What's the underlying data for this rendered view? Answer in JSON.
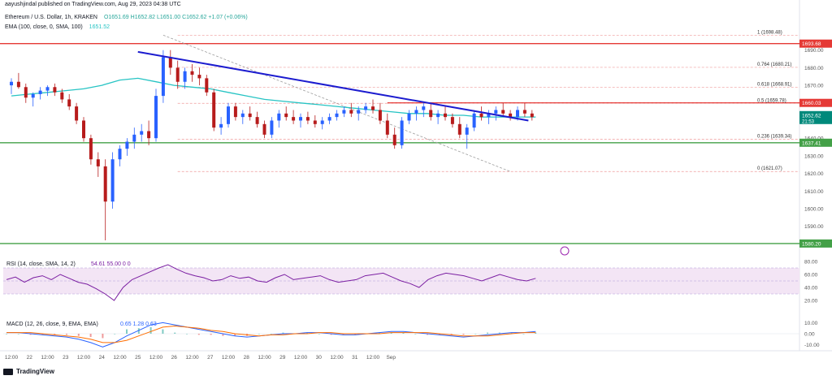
{
  "header": {
    "published": "aayushjindal published on TradingView.com, Aug 29, 2023 04:38 UTC",
    "symbol": "Ethereum / U.S. Dollar, 1h, KRAKEN",
    "ohlc": "O1651.69  H1652.82  L1651.00  C1652.62  +1.07 (+0.06%)",
    "ema_label": "EMA (100, close, 0, SMA, 100)",
    "ema_value": "1651.52"
  },
  "footer": {
    "brand": "TradingView"
  },
  "colors": {
    "up": "#26a69a",
    "down": "#ef5350",
    "candle_up": "#2962ff",
    "candle_down": "#b71c1c",
    "ema": "#27c4c4",
    "trend": "#1c1ccf",
    "resistance": "#e53935",
    "support": "#43a047",
    "rsi": "#7b1fa2",
    "macd": "#2962ff",
    "signal": "#ff6d00",
    "bg": "#ffffff"
  },
  "chart_data": [
    {
      "type": "candlestick",
      "title": "Ethereum / U.S. Dollar, 1h, KRAKEN",
      "x_ticks": [
        "12:00",
        "22",
        "12:00",
        "23",
        "12:00",
        "24",
        "12:00",
        "25",
        "12:00",
        "26",
        "12:00",
        "27",
        "12:00",
        "28",
        "12:00",
        "29",
        "12:00",
        "30",
        "12:00",
        "31",
        "12:00",
        "Sep"
      ],
      "y_ticks": [
        "1690.00",
        "1680.00",
        "1670.00",
        "1660.00",
        "1650.00",
        "1640.00",
        "1630.00",
        "1620.00",
        "1610.00",
        "1600.00",
        "1590.00"
      ],
      "ylim": [
        1582,
        1700
      ],
      "horizontal_lines": [
        {
          "label": "1693.68",
          "value": 1693.68,
          "role": "resistance"
        },
        {
          "label": "1660.03",
          "value": 1660.03,
          "role": "resistance"
        },
        {
          "label": "1637.41",
          "value": 1637.41,
          "role": "support"
        },
        {
          "label": "1580.20",
          "value": 1580.2,
          "role": "support"
        }
      ],
      "fibonacci": [
        {
          "label": "1 (1698.48)",
          "value": 1698.48
        },
        {
          "label": "0.764 (1680.21)",
          "value": 1680.21
        },
        {
          "label": "0.618 (1668.91)",
          "value": 1668.91
        },
        {
          "label": "0.5 (1659.78)",
          "value": 1659.78
        },
        {
          "label": "0.236 (1639.34)",
          "value": 1639.34
        },
        {
          "label": "0 (1621.07)",
          "value": 1621.07
        }
      ],
      "last_price": {
        "label": "1652.62",
        "countdown": "21:53",
        "value": 1652.62
      },
      "trendline": {
        "start": [
          3.5,
          1689
        ],
        "end": [
          14.3,
          1650
        ]
      },
      "ema_series": [
        [
          0,
          1664
        ],
        [
          0.5,
          1665
        ],
        [
          1,
          1666
        ],
        [
          1.5,
          1667
        ],
        [
          2,
          1668
        ],
        [
          2.5,
          1670
        ],
        [
          3,
          1673
        ],
        [
          3.5,
          1674
        ],
        [
          4,
          1672
        ],
        [
          4.5,
          1670
        ],
        [
          5,
          1669
        ],
        [
          5.5,
          1668
        ],
        [
          6,
          1666
        ],
        [
          6.5,
          1664
        ],
        [
          7,
          1662
        ],
        [
          7.5,
          1661
        ],
        [
          8,
          1660
        ],
        [
          8.5,
          1659
        ],
        [
          9,
          1658
        ],
        [
          9.5,
          1657
        ],
        [
          10,
          1656
        ],
        [
          10.5,
          1655
        ],
        [
          11,
          1654
        ],
        [
          11.5,
          1654
        ],
        [
          12,
          1653
        ],
        [
          12.5,
          1653
        ],
        [
          13,
          1652
        ],
        [
          13.5,
          1652
        ],
        [
          14,
          1652
        ],
        [
          14.5,
          1652
        ]
      ],
      "candles": [
        [
          0,
          1670,
          1674,
          1665,
          1672
        ],
        [
          0.2,
          1672,
          1677,
          1668,
          1669
        ],
        [
          0.4,
          1669,
          1671,
          1660,
          1663
        ],
        [
          0.6,
          1663,
          1666,
          1658,
          1665
        ],
        [
          0.8,
          1665,
          1669,
          1662,
          1667
        ],
        [
          1,
          1667,
          1670,
          1664,
          1669
        ],
        [
          1.2,
          1669,
          1671,
          1664,
          1666
        ],
        [
          1.4,
          1666,
          1668,
          1660,
          1662
        ],
        [
          1.6,
          1662,
          1665,
          1656,
          1658
        ],
        [
          1.8,
          1658,
          1660,
          1648,
          1650
        ],
        [
          2,
          1650,
          1652,
          1638,
          1640
        ],
        [
          2.2,
          1640,
          1642,
          1625,
          1628
        ],
        [
          2.4,
          1628,
          1632,
          1618,
          1624
        ],
        [
          2.6,
          1624,
          1628,
          1582,
          1604
        ],
        [
          2.8,
          1604,
          1632,
          1600,
          1628
        ],
        [
          3,
          1628,
          1636,
          1624,
          1634
        ],
        [
          3.2,
          1634,
          1640,
          1630,
          1638
        ],
        [
          3.4,
          1638,
          1646,
          1634,
          1642
        ],
        [
          3.6,
          1642,
          1648,
          1638,
          1644
        ],
        [
          3.8,
          1644,
          1650,
          1636,
          1640
        ],
        [
          4,
          1640,
          1668,
          1638,
          1664
        ],
        [
          4.2,
          1664,
          1690,
          1660,
          1686
        ],
        [
          4.4,
          1686,
          1690,
          1676,
          1680
        ],
        [
          4.6,
          1680,
          1684,
          1668,
          1672
        ],
        [
          4.8,
          1672,
          1680,
          1668,
          1678
        ],
        [
          5,
          1678,
          1682,
          1672,
          1676
        ],
        [
          5.2,
          1676,
          1680,
          1670,
          1674
        ],
        [
          5.4,
          1674,
          1676,
          1664,
          1666
        ],
        [
          5.6,
          1666,
          1668,
          1644,
          1646
        ],
        [
          5.8,
          1646,
          1652,
          1642,
          1648
        ],
        [
          6,
          1648,
          1660,
          1646,
          1658
        ],
        [
          6.2,
          1658,
          1660,
          1650,
          1652
        ],
        [
          6.4,
          1652,
          1656,
          1648,
          1654
        ],
        [
          6.6,
          1654,
          1658,
          1650,
          1652
        ],
        [
          6.8,
          1652,
          1655,
          1646,
          1648
        ],
        [
          7,
          1648,
          1650,
          1640,
          1642
        ],
        [
          7.2,
          1642,
          1652,
          1640,
          1650
        ],
        [
          7.4,
          1650,
          1656,
          1646,
          1654
        ],
        [
          7.6,
          1654,
          1658,
          1650,
          1652
        ],
        [
          7.8,
          1652,
          1656,
          1648,
          1650
        ],
        [
          8,
          1650,
          1654,
          1646,
          1652
        ],
        [
          8.2,
          1652,
          1655,
          1648,
          1650
        ],
        [
          8.4,
          1650,
          1653,
          1646,
          1648
        ],
        [
          8.6,
          1648,
          1652,
          1645,
          1650
        ],
        [
          8.8,
          1650,
          1654,
          1648,
          1652
        ],
        [
          9,
          1652,
          1656,
          1650,
          1654
        ],
        [
          9.2,
          1654,
          1658,
          1652,
          1656
        ],
        [
          9.4,
          1656,
          1660,
          1652,
          1654
        ],
        [
          9.6,
          1654,
          1658,
          1650,
          1656
        ],
        [
          9.8,
          1656,
          1660,
          1654,
          1658
        ],
        [
          10,
          1658,
          1662,
          1654,
          1656
        ],
        [
          10.2,
          1656,
          1660,
          1648,
          1650
        ],
        [
          10.4,
          1650,
          1654,
          1640,
          1642
        ],
        [
          10.6,
          1642,
          1646,
          1634,
          1636
        ],
        [
          10.8,
          1636,
          1652,
          1634,
          1650
        ],
        [
          11,
          1650,
          1656,
          1648,
          1654
        ],
        [
          11.2,
          1654,
          1658,
          1650,
          1656
        ],
        [
          11.4,
          1656,
          1660,
          1652,
          1658
        ],
        [
          11.6,
          1656,
          1660,
          1650,
          1652
        ],
        [
          11.8,
          1652,
          1656,
          1648,
          1654
        ],
        [
          12,
          1654,
          1658,
          1650,
          1652
        ],
        [
          12.2,
          1652,
          1654,
          1646,
          1648
        ],
        [
          12.4,
          1648,
          1652,
          1640,
          1642
        ],
        [
          12.6,
          1642,
          1648,
          1634,
          1646
        ],
        [
          12.8,
          1646,
          1656,
          1644,
          1654
        ],
        [
          13,
          1654,
          1658,
          1650,
          1652
        ],
        [
          13.2,
          1652,
          1656,
          1648,
          1654
        ],
        [
          13.4,
          1654,
          1658,
          1650,
          1656
        ],
        [
          13.6,
          1656,
          1660,
          1652,
          1654
        ],
        [
          13.8,
          1654,
          1656,
          1650,
          1652
        ],
        [
          14,
          1652,
          1658,
          1650,
          1656
        ],
        [
          14.2,
          1656,
          1660,
          1652,
          1654
        ],
        [
          14.4,
          1654,
          1656,
          1650,
          1652
        ]
      ]
    },
    {
      "type": "line",
      "title": "RSI (14, close, SMA, 14, 2)",
      "legend_values": [
        "54.61",
        "55.00",
        "0",
        "0"
      ],
      "y_ticks": [
        "80.00",
        "60.00",
        "40.00",
        "20.00"
      ],
      "ylim": [
        10,
        85
      ],
      "band": [
        30,
        70
      ],
      "series": [
        {
          "name": "RSI",
          "values": [
            52,
            56,
            48,
            55,
            58,
            52,
            60,
            54,
            48,
            45,
            38,
            30,
            20,
            40,
            52,
            58,
            64,
            70,
            75,
            68,
            62,
            58,
            55,
            50,
            52,
            58,
            54,
            56,
            50,
            48,
            55,
            60,
            52,
            54,
            56,
            58,
            52,
            48,
            50,
            52,
            58,
            60,
            62,
            56,
            50,
            46,
            40,
            52,
            58,
            62,
            60,
            58,
            54,
            50,
            55,
            60,
            56,
            52,
            50,
            54
          ]
        }
      ]
    },
    {
      "type": "line",
      "title": "MACD (12, 26, close, 9, EMA, EMA)",
      "legend_values": [
        "0.65",
        "1.28",
        "0.63"
      ],
      "y_ticks": [
        "10.00",
        "0.00",
        "-10.00"
      ],
      "ylim": [
        -14,
        14
      ],
      "series": [
        {
          "name": "MACD",
          "values": [
            1,
            1,
            0,
            -1,
            -2,
            -3,
            -5,
            -8,
            -12,
            -8,
            -2,
            3,
            8,
            10,
            8,
            6,
            4,
            2,
            0,
            -2,
            -3,
            -2,
            -1,
            0,
            0,
            1,
            1,
            0,
            -1,
            -1,
            0,
            1,
            2,
            2,
            1,
            0,
            -1,
            -2,
            -3,
            -2,
            -1,
            0,
            1,
            1,
            2
          ]
        },
        {
          "name": "Signal",
          "values": [
            1,
            1,
            1,
            0,
            -1,
            -2,
            -3,
            -5,
            -8,
            -8,
            -6,
            -2,
            2,
            6,
            7,
            6,
            5,
            3,
            2,
            0,
            -1,
            -2,
            -1,
            -1,
            0,
            0,
            1,
            1,
            0,
            0,
            0,
            0,
            1,
            1,
            1,
            1,
            0,
            -1,
            -2,
            -2,
            -2,
            -1,
            0,
            1,
            1
          ]
        }
      ]
    }
  ]
}
